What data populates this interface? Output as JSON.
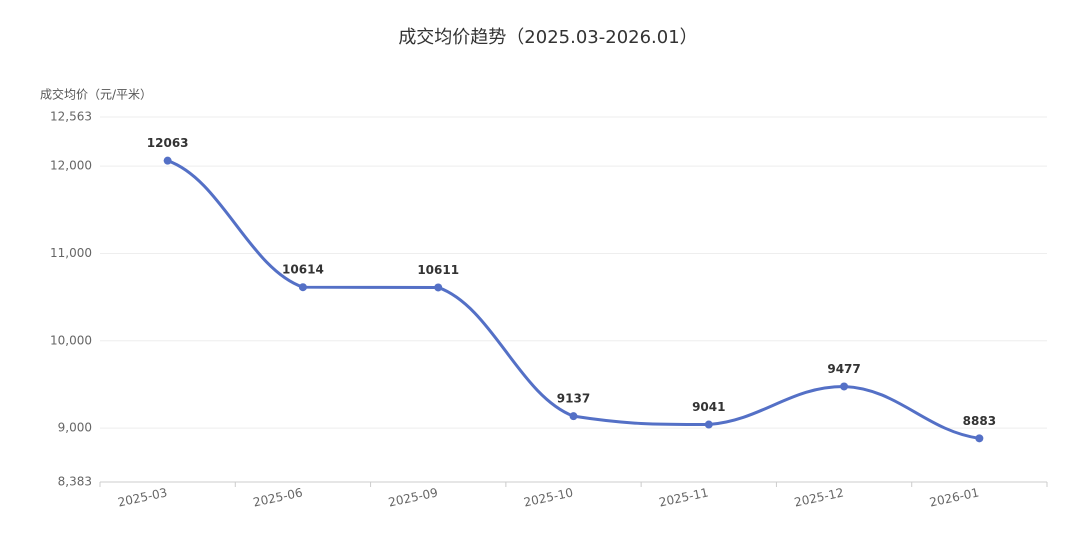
{
  "chart_data": {
    "type": "line",
    "title": "成交均价趋势（2025.03-2026.01）",
    "y_axis_label": "成交均价（元/平米）",
    "categories": [
      "2025-03",
      "2025-06",
      "2025-09",
      "2025-10",
      "2025-11",
      "2025-12",
      "2026-01"
    ],
    "series": [
      {
        "name": "成交均价",
        "color": "#5470c6",
        "values": [
          12063,
          10614,
          10611,
          9137,
          9041,
          9477,
          8883
        ]
      }
    ],
    "ylim": [
      8383,
      12563
    ],
    "yticks": [
      {
        "value": 8383,
        "label": "8,383"
      },
      {
        "value": 9000,
        "label": "9,000"
      },
      {
        "value": 10000,
        "label": "10,000"
      },
      {
        "value": 11000,
        "label": "11,000"
      },
      {
        "value": 12000,
        "label": "12,000"
      },
      {
        "value": 12563,
        "label": "12,563"
      }
    ],
    "grid": true,
    "smooth": true
  }
}
